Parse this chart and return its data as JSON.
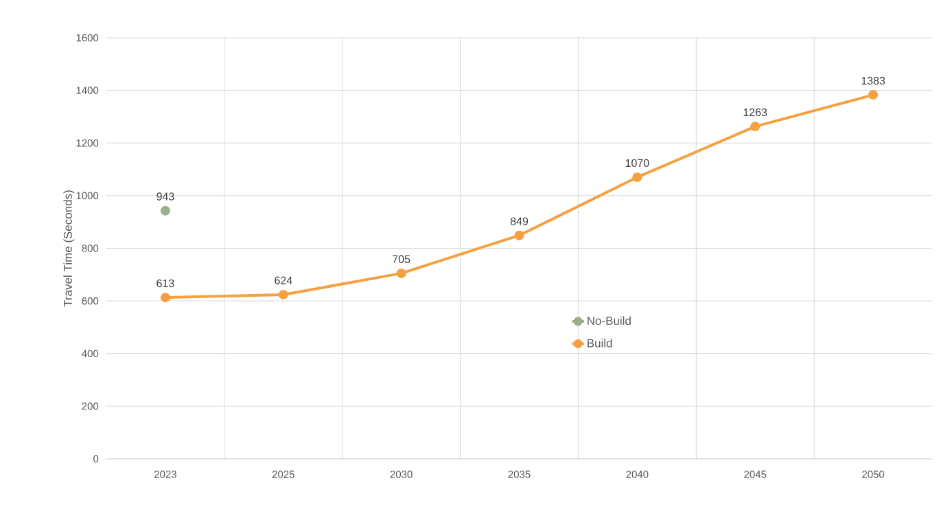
{
  "chart_data": {
    "type": "line",
    "ylabel": "Travel Time (Seconds)",
    "categories": [
      "2023",
      "2025",
      "2030",
      "2035",
      "2040",
      "2045",
      "2050"
    ],
    "series": [
      {
        "name": "No-Build",
        "color": "#9bb08a",
        "values": [
          943,
          null,
          null,
          null,
          null,
          null,
          null
        ]
      },
      {
        "name": "Build",
        "color": "#f5a142",
        "values": [
          613,
          624,
          705,
          849,
          1070,
          1263,
          1383
        ]
      }
    ],
    "ylim": [
      0,
      1600
    ],
    "yticks": [
      0,
      200,
      400,
      600,
      800,
      1000,
      1200,
      1400,
      1600
    ],
    "grid": true,
    "legend": "center",
    "marker": "circle",
    "line_style": "solid",
    "data_labels": true
  }
}
